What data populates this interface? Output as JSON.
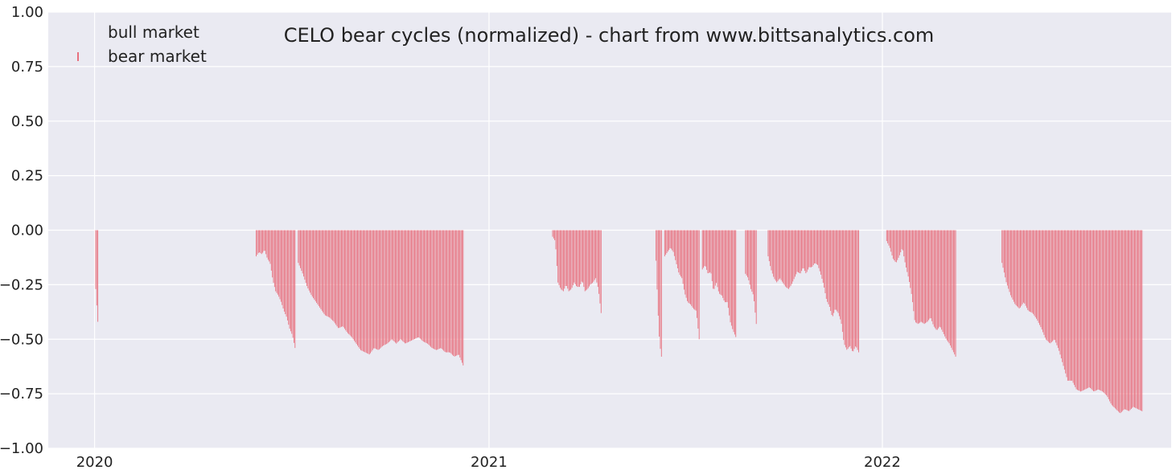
{
  "chart_data": {
    "type": "bar",
    "title": "CELO bear cycles (normalized)  - chart from www.bittsanalytics.com",
    "xlabel": "",
    "ylabel": "",
    "ylim": [
      -1.0,
      1.0
    ],
    "xlim": [
      "2019-11-19",
      "2022-09-26"
    ],
    "grid": true,
    "legend_placement": "top-left",
    "colors": {
      "plot_background": "#eaeaf2",
      "grid": "#ffffff",
      "bear": "#e8707e",
      "bull": "#ffffff"
    },
    "y_ticks": [
      1.0,
      0.75,
      0.5,
      0.25,
      0.0,
      -0.25,
      -0.5,
      -0.75,
      -1.0
    ],
    "y_tick_labels": [
      "1.00",
      "0.75",
      "0.50",
      "0.25",
      "0.00",
      "−0.25",
      "−0.50",
      "−0.75",
      "−1.00"
    ],
    "x_ticks": [
      {
        "date": "2020-01-01",
        "label": "2020"
      },
      {
        "date": "2021-01-01",
        "label": "2021"
      },
      {
        "date": "2022-01-01",
        "label": "2022"
      }
    ],
    "series": [
      {
        "name": "bull market",
        "values": []
      },
      {
        "name": "bear market",
        "segments": [
          {
            "start": "2020-01-02",
            "end": "2020-01-04",
            "values": [
              -0.27,
              -0.42
            ]
          },
          {
            "start": "2020-05-30",
            "end": "2020-07-05",
            "values": [
              -0.12,
              -0.1,
              -0.11,
              -0.09,
              -0.13,
              -0.15,
              -0.23,
              -0.28,
              -0.3,
              -0.33,
              -0.37,
              -0.4,
              -0.45,
              -0.48,
              -0.54
            ]
          },
          {
            "start": "2020-07-08",
            "end": "2020-12-08",
            "values": [
              -0.15,
              -0.2,
              -0.26,
              -0.3,
              -0.33,
              -0.36,
              -0.39,
              -0.4,
              -0.42,
              -0.45,
              -0.44,
              -0.47,
              -0.49,
              -0.52,
              -0.55,
              -0.56,
              -0.57,
              -0.54,
              -0.55,
              -0.53,
              -0.52,
              -0.5,
              -0.52,
              -0.5,
              -0.52,
              -0.51,
              -0.5,
              -0.49,
              -0.51,
              -0.52,
              -0.54,
              -0.55,
              -0.54,
              -0.56,
              -0.56,
              -0.58,
              -0.57,
              -0.62
            ]
          },
          {
            "start": "2021-03-01",
            "end": "2021-04-15",
            "values": [
              -0.03,
              -0.05,
              -0.24,
              -0.27,
              -0.28,
              -0.25,
              -0.28,
              -0.27,
              -0.24,
              -0.26,
              -0.26,
              -0.23,
              -0.28,
              -0.27,
              -0.25,
              -0.24,
              -0.22,
              -0.27,
              -0.38
            ]
          },
          {
            "start": "2021-06-05",
            "end": "2021-06-10",
            "values": [
              -0.14,
              -0.36,
              -0.52,
              -0.58
            ]
          },
          {
            "start": "2021-06-13",
            "end": "2021-07-15",
            "values": [
              -0.12,
              -0.1,
              -0.08,
              -0.1,
              -0.15,
              -0.2,
              -0.22,
              -0.29,
              -0.33,
              -0.34,
              -0.36,
              -0.37,
              -0.5
            ]
          },
          {
            "start": "2021-07-18",
            "end": "2021-08-18",
            "values": [
              -0.18,
              -0.16,
              -0.2,
              -0.19,
              -0.28,
              -0.24,
              -0.29,
              -0.3,
              -0.33,
              -0.33,
              -0.42,
              -0.46,
              -0.49
            ]
          },
          {
            "start": "2021-08-27",
            "end": "2021-09-06",
            "values": [
              -0.2,
              -0.22,
              -0.27,
              -0.3,
              -0.43
            ]
          },
          {
            "start": "2021-09-17",
            "end": "2021-12-10",
            "values": [
              -0.12,
              -0.18,
              -0.22,
              -0.24,
              -0.22,
              -0.24,
              -0.26,
              -0.27,
              -0.25,
              -0.22,
              -0.19,
              -0.2,
              -0.17,
              -0.2,
              -0.17,
              -0.17,
              -0.15,
              -0.16,
              -0.2,
              -0.25,
              -0.32,
              -0.35,
              -0.4,
              -0.36,
              -0.38,
              -0.42,
              -0.52,
              -0.55,
              -0.53,
              -0.56,
              -0.53,
              -0.56
            ]
          },
          {
            "start": "2022-01-05",
            "end": "2022-03-10",
            "values": [
              -0.05,
              -0.08,
              -0.13,
              -0.15,
              -0.12,
              -0.08,
              -0.16,
              -0.22,
              -0.3,
              -0.42,
              -0.43,
              -0.42,
              -0.43,
              -0.42,
              -0.4,
              -0.44,
              -0.46,
              -0.44,
              -0.47,
              -0.5,
              -0.52,
              -0.55,
              -0.58
            ]
          },
          {
            "start": "2022-04-22",
            "end": "2022-08-30",
            "values": [
              -0.15,
              -0.24,
              -0.3,
              -0.34,
              -0.36,
              -0.33,
              -0.37,
              -0.38,
              -0.41,
              -0.45,
              -0.5,
              -0.52,
              -0.5,
              -0.55,
              -0.62,
              -0.69,
              -0.69,
              -0.73,
              -0.74,
              -0.73,
              -0.72,
              -0.74,
              -0.73,
              -0.74,
              -0.76,
              -0.8,
              -0.82,
              -0.84,
              -0.82,
              -0.83,
              -0.81,
              -0.82,
              -0.83
            ]
          }
        ]
      }
    ]
  }
}
